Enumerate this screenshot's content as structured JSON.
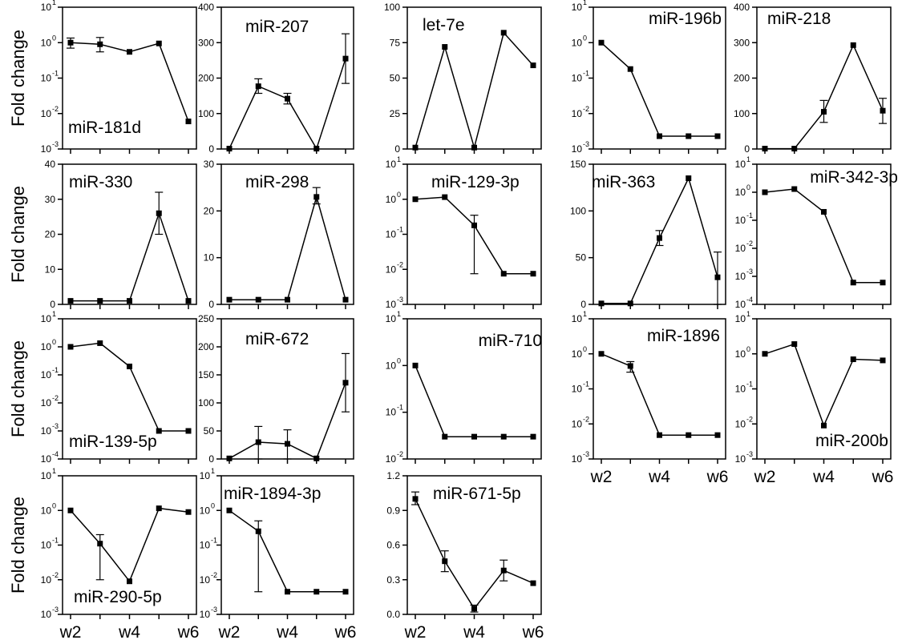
{
  "ylabel": "Fold change",
  "xticks": [
    "w2",
    "w4",
    "w6"
  ],
  "chart_data": [
    {
      "type": "line",
      "title": "miR-181d",
      "ylabel": "Fold change",
      "scale": "log",
      "yticks": [
        -3,
        -2,
        -1,
        0,
        1
      ],
      "x": [
        2,
        3,
        4,
        5,
        6
      ],
      "values": [
        1.0,
        0.9,
        0.55,
        0.95,
        0.006
      ],
      "err": [
        [
          0.7,
          1.35
        ],
        [
          0.55,
          1.4
        ],
        null,
        null,
        null
      ]
    },
    {
      "type": "line",
      "title": "miR-207",
      "scale": "linear",
      "ylim": [
        0,
        400
      ],
      "yticks": [
        0,
        100,
        200,
        300,
        400
      ],
      "x": [
        2,
        3,
        4,
        5,
        6
      ],
      "values": [
        1,
        177,
        142,
        1,
        255
      ],
      "err": [
        null,
        [
          157,
          198
        ],
        [
          127,
          157
        ],
        null,
        [
          185,
          325
        ]
      ]
    },
    {
      "type": "line",
      "title": "let-7e",
      "scale": "linear",
      "ylim": [
        0,
        100
      ],
      "yticks": [
        0,
        25,
        50,
        75,
        100
      ],
      "x": [
        2,
        3,
        4,
        5,
        6
      ],
      "values": [
        1,
        72,
        1,
        82,
        59
      ],
      "err": [
        null,
        null,
        null,
        null,
        null
      ]
    },
    {
      "type": "line",
      "title": "miR-196b",
      "scale": "log",
      "yticks": [
        -3,
        -2,
        -1,
        0,
        1
      ],
      "x": [
        2,
        3,
        4,
        5,
        6
      ],
      "values": [
        1.0,
        0.18,
        0.0023,
        0.0023,
        0.0023
      ],
      "err": [
        null,
        null,
        null,
        null,
        null
      ]
    },
    {
      "type": "line",
      "title": "miR-218",
      "scale": "linear",
      "ylim": [
        0,
        400
      ],
      "yticks": [
        0,
        100,
        200,
        300,
        400
      ],
      "x": [
        2,
        3,
        4,
        5,
        6
      ],
      "values": [
        1,
        1,
        105,
        293,
        108
      ],
      "err": [
        null,
        null,
        [
          75,
          137
        ],
        null,
        [
          72,
          143
        ]
      ]
    },
    {
      "type": "line",
      "title": "miR-330",
      "ylabel": "Fold change",
      "scale": "linear",
      "ylim": [
        0,
        40
      ],
      "yticks": [
        0,
        10,
        20,
        30,
        40
      ],
      "x": [
        2,
        3,
        4,
        5,
        6
      ],
      "values": [
        1,
        1,
        1,
        26,
        1
      ],
      "err": [
        null,
        null,
        null,
        [
          20,
          32
        ],
        null
      ]
    },
    {
      "type": "line",
      "title": "miR-298",
      "scale": "linear",
      "ylim": [
        0,
        30
      ],
      "yticks": [
        0,
        10,
        20,
        30
      ],
      "x": [
        2,
        3,
        4,
        5,
        6
      ],
      "values": [
        1,
        1,
        1,
        23,
        1
      ],
      "err": [
        null,
        null,
        null,
        [
          21.5,
          25
        ],
        null
      ]
    },
    {
      "type": "line",
      "title": "miR-129-3p",
      "scale": "log",
      "yticks": [
        -3,
        -2,
        -1,
        0,
        1
      ],
      "x": [
        2,
        3,
        4,
        5,
        6
      ],
      "values": [
        1.0,
        1.15,
        0.18,
        0.0075,
        0.0075
      ],
      "err": [
        null,
        null,
        [
          0.0075,
          0.35
        ],
        null,
        null
      ]
    },
    {
      "type": "line",
      "title": "miR-363",
      "scale": "linear",
      "ylim": [
        0,
        150
      ],
      "yticks": [
        0,
        50,
        100,
        150
      ],
      "x": [
        2,
        3,
        4,
        5,
        6
      ],
      "values": [
        1,
        1,
        71,
        135,
        29
      ],
      "err": [
        null,
        null,
        [
          63,
          79
        ],
        null,
        [
          0,
          56
        ]
      ]
    },
    {
      "type": "line",
      "title": "miR-342-3p",
      "scale": "log",
      "yticks": [
        -4,
        -3,
        -2,
        -1,
        0,
        1
      ],
      "x": [
        2,
        3,
        4,
        5,
        6
      ],
      "values": [
        1.0,
        1.3,
        0.2,
        0.0006,
        0.0006
      ],
      "err": [
        null,
        null,
        null,
        null,
        null
      ]
    },
    {
      "type": "line",
      "title": "miR-139-5p",
      "ylabel": "Fold change",
      "scale": "log",
      "yticks": [
        -4,
        -3,
        -2,
        -1,
        0,
        1
      ],
      "x": [
        2,
        3,
        4,
        5,
        6
      ],
      "values": [
        1.0,
        1.35,
        0.2,
        0.001,
        0.001
      ],
      "err": [
        null,
        null,
        null,
        null,
        null
      ]
    },
    {
      "type": "line",
      "title": "miR-672",
      "scale": "linear",
      "ylim": [
        0,
        250
      ],
      "yticks": [
        0,
        50,
        100,
        150,
        200,
        250
      ],
      "x": [
        2,
        3,
        4,
        5,
        6
      ],
      "values": [
        1,
        30,
        27,
        1,
        136
      ],
      "err": [
        null,
        [
          0,
          58
        ],
        [
          0,
          52
        ],
        null,
        [
          84,
          188
        ]
      ]
    },
    {
      "type": "line",
      "title": "miR-710",
      "scale": "log",
      "yticks": [
        -2,
        -1,
        0,
        1
      ],
      "x": [
        2,
        3,
        4,
        5,
        6
      ],
      "values": [
        1.0,
        0.03,
        0.03,
        0.03,
        0.03
      ],
      "err": [
        null,
        null,
        null,
        null,
        null
      ]
    },
    {
      "type": "line",
      "title": "miR-1896",
      "scale": "log",
      "yticks": [
        -3,
        -2,
        -1,
        0,
        1
      ],
      "x": [
        2,
        3,
        4,
        5,
        6
      ],
      "values": [
        1.0,
        0.45,
        0.0048,
        0.0048,
        0.0048
      ],
      "err": [
        null,
        [
          0.3,
          0.6
        ],
        null,
        null,
        null
      ]
    },
    {
      "type": "line",
      "title": "miR-200b",
      "scale": "log",
      "yticks": [
        -3,
        -2,
        -1,
        0,
        1
      ],
      "x": [
        2,
        3,
        4,
        5,
        6
      ],
      "values": [
        1.0,
        1.9,
        0.009,
        0.7,
        0.65
      ],
      "err": [
        null,
        null,
        null,
        null,
        null
      ]
    },
    {
      "type": "line",
      "title": "miR-290-5p",
      "ylabel": "Fold change",
      "scale": "log",
      "yticks": [
        -3,
        -2,
        -1,
        0,
        1
      ],
      "x": [
        2,
        3,
        4,
        5,
        6
      ],
      "values": [
        1.0,
        0.11,
        0.009,
        1.15,
        0.9
      ],
      "err": [
        null,
        [
          0.01,
          0.2
        ],
        null,
        null,
        null
      ]
    },
    {
      "type": "line",
      "title": "miR-1894-3p",
      "scale": "log",
      "yticks": [
        -3,
        -2,
        -1,
        0,
        1
      ],
      "x": [
        2,
        3,
        4,
        5,
        6
      ],
      "values": [
        1.0,
        0.25,
        0.0045,
        0.0045,
        0.0045
      ],
      "err": [
        null,
        [
          0.0045,
          0.5
        ],
        null,
        null,
        null
      ]
    },
    {
      "type": "line",
      "title": "miR-671-5p",
      "scale": "linear",
      "ylim": [
        0,
        1.2
      ],
      "yticks": [
        0.0,
        0.3,
        0.6,
        0.9,
        1.2
      ],
      "ytick_labels": [
        "0.0",
        "0.3",
        "0.6",
        "0.9",
        "1.2"
      ],
      "x": [
        2,
        3,
        4,
        5,
        6
      ],
      "values": [
        1.0,
        0.46,
        0.05,
        0.38,
        0.27
      ],
      "err": [
        [
          0.95,
          1.06
        ],
        [
          0.37,
          0.55
        ],
        [
          0.02,
          0.08
        ],
        [
          0.29,
          0.47
        ],
        null
      ]
    }
  ]
}
